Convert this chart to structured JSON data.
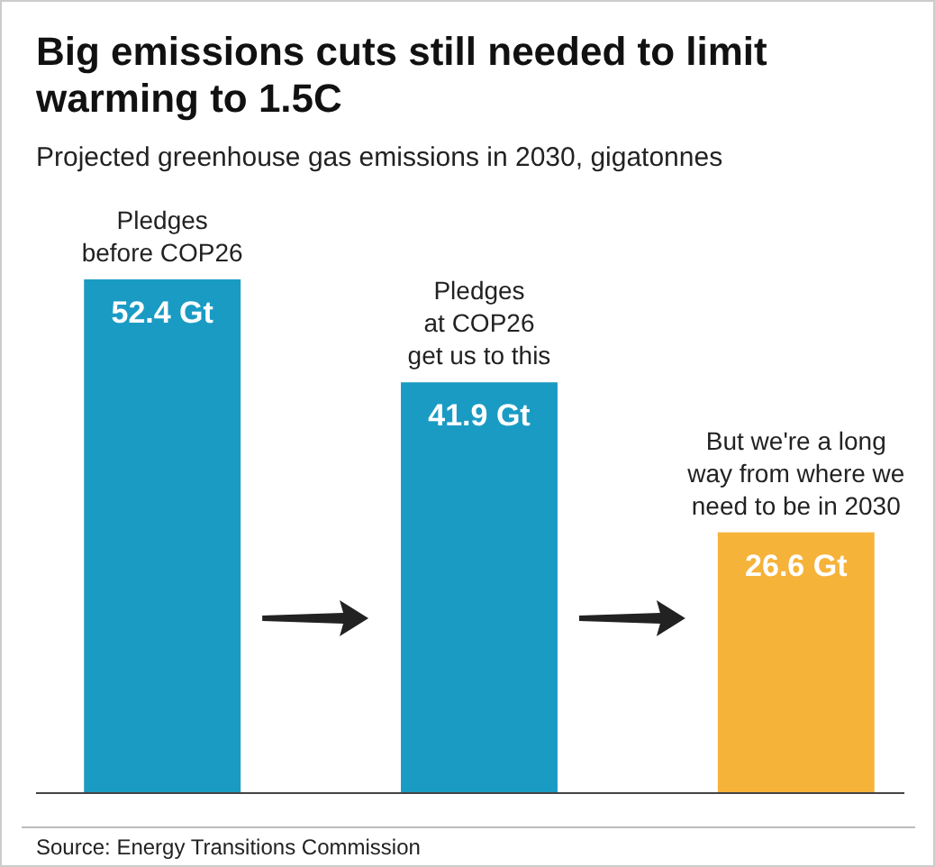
{
  "chart_data": {
    "type": "bar",
    "title": "Big emissions cuts still needed to limit warming to 1.5C",
    "subtitle": "Projected greenhouse gas emissions in 2030, gigatonnes",
    "categories": [
      "Pledges\nbefore COP26",
      "Pledges\nat COP26\nget us to this",
      "But we're a long\nway from where we\nneed to be in 2030"
    ],
    "values": [
      52.4,
      41.9,
      26.6
    ],
    "colors": [
      "#1a9bc4",
      "#1a9bc4",
      "#f6b33a"
    ],
    "value_labels": [
      "52.4 Gt",
      "41.9 Gt",
      "26.6 Gt"
    ],
    "annotations": [
      "Source: Energy Transitions Commission"
    ]
  }
}
